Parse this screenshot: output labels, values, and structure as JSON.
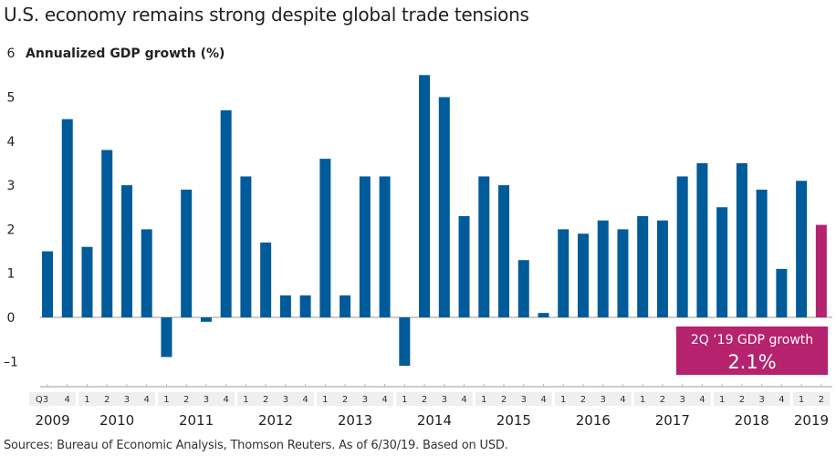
{
  "title": "U.S. economy remains strong despite global trade tensions",
  "source": "Sources: Bureau of Economic Analysis, Thomson Reuters. As of 6/30/19. Based on USD.",
  "colors": {
    "bar": "#005b9a",
    "highlight": "#b5226d",
    "axis": "#cccccc",
    "band": "#efefef"
  },
  "chart_data": {
    "type": "bar",
    "title": "U.S. economy remains strong despite global trade tensions",
    "ylabel": "Annualized GDP growth (%)",
    "xlabel": "",
    "ylim": [
      -1.5,
      6
    ],
    "yticks": [
      6,
      5,
      4,
      3,
      2,
      1,
      0,
      -1
    ],
    "grid": false,
    "quarter_prefix": "Q",
    "years": [
      {
        "label": "2009",
        "quarters": [
          "3",
          "4"
        ]
      },
      {
        "label": "2010",
        "quarters": [
          "1",
          "2",
          "3",
          "4"
        ]
      },
      {
        "label": "2011",
        "quarters": [
          "1",
          "2",
          "3",
          "4"
        ]
      },
      {
        "label": "2012",
        "quarters": [
          "1",
          "2",
          "3",
          "4"
        ]
      },
      {
        "label": "2013",
        "quarters": [
          "1",
          "2",
          "3",
          "4"
        ]
      },
      {
        "label": "2014",
        "quarters": [
          "1",
          "2",
          "3",
          "4"
        ]
      },
      {
        "label": "2015",
        "quarters": [
          "1",
          "2",
          "3",
          "4"
        ]
      },
      {
        "label": "2016",
        "quarters": [
          "1",
          "2",
          "3",
          "4"
        ]
      },
      {
        "label": "2017",
        "quarters": [
          "1",
          "2",
          "3",
          "4"
        ]
      },
      {
        "label": "2018",
        "quarters": [
          "1",
          "2",
          "3",
          "4"
        ]
      },
      {
        "label": "2019",
        "quarters": [
          "1",
          "2"
        ]
      }
    ],
    "values": [
      1.5,
      4.5,
      1.6,
      3.8,
      3.0,
      2.0,
      -0.9,
      2.9,
      -0.1,
      4.7,
      3.2,
      1.7,
      0.5,
      0.5,
      3.6,
      0.5,
      3.2,
      3.2,
      -1.1,
      5.5,
      5.0,
      2.3,
      3.2,
      3.0,
      1.3,
      0.1,
      2.0,
      1.9,
      2.2,
      2.0,
      2.3,
      2.2,
      3.2,
      3.5,
      2.5,
      3.5,
      2.9,
      1.1,
      3.1,
      2.1
    ],
    "highlight_index": 39,
    "annotation": {
      "line1": "2Q ‘19 GDP growth",
      "line2": "2.1%"
    }
  }
}
